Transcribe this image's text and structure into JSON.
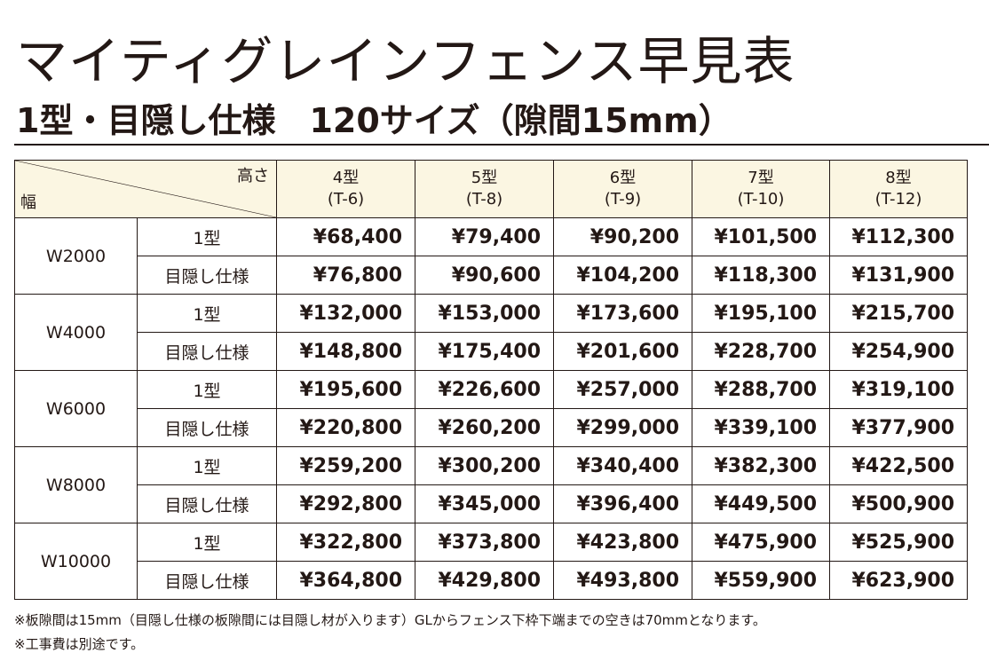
{
  "title": "マイティグレインフェンス早見表",
  "subtitle": "1型・目隠し仕様　120サイズ（隙間15mm）",
  "table": {
    "corner_height_label": "高さ",
    "corner_width_label": "幅",
    "columns": [
      {
        "type": "4型",
        "code": "(T-6)"
      },
      {
        "type": "5型",
        "code": "(T-8)"
      },
      {
        "type": "6型",
        "code": "(T-9)"
      },
      {
        "type": "7型",
        "code": "(T-10)"
      },
      {
        "type": "8型",
        "code": "(T-12)"
      }
    ],
    "groups": [
      {
        "width": "W2000",
        "rows": [
          {
            "label": "1型",
            "prices": [
              "¥68,400",
              "¥79,400",
              "¥90,200",
              "¥101,500",
              "¥112,300"
            ]
          },
          {
            "label": "目隠し仕様",
            "prices": [
              "¥76,800",
              "¥90,600",
              "¥104,200",
              "¥118,300",
              "¥131,900"
            ]
          }
        ]
      },
      {
        "width": "W4000",
        "rows": [
          {
            "label": "1型",
            "prices": [
              "¥132,000",
              "¥153,000",
              "¥173,600",
              "¥195,100",
              "¥215,700"
            ]
          },
          {
            "label": "目隠し仕様",
            "prices": [
              "¥148,800",
              "¥175,400",
              "¥201,600",
              "¥228,700",
              "¥254,900"
            ]
          }
        ]
      },
      {
        "width": "W6000",
        "rows": [
          {
            "label": "1型",
            "prices": [
              "¥195,600",
              "¥226,600",
              "¥257,000",
              "¥288,700",
              "¥319,100"
            ]
          },
          {
            "label": "目隠し仕様",
            "prices": [
              "¥220,800",
              "¥260,200",
              "¥299,000",
              "¥339,100",
              "¥377,900"
            ]
          }
        ]
      },
      {
        "width": "W8000",
        "rows": [
          {
            "label": "1型",
            "prices": [
              "¥259,200",
              "¥300,200",
              "¥340,400",
              "¥382,300",
              "¥422,500"
            ]
          },
          {
            "label": "目隠し仕様",
            "prices": [
              "¥292,800",
              "¥345,000",
              "¥396,400",
              "¥449,500",
              "¥500,900"
            ]
          }
        ]
      },
      {
        "width": "W10000",
        "rows": [
          {
            "label": "1型",
            "prices": [
              "¥322,800",
              "¥373,800",
              "¥423,800",
              "¥475,900",
              "¥525,900"
            ]
          },
          {
            "label": "目隠し仕様",
            "prices": [
              "¥364,800",
              "¥429,800",
              "¥493,800",
              "¥559,900",
              "¥623,900"
            ]
          }
        ]
      }
    ]
  },
  "notes": [
    "※板隙間は15mm（目隠し仕様の板隙間には目隠し材が入ります）GLからフェンス下枠下端までの空きは70mmとなります。",
    "※工事費は別途です。"
  ],
  "colors": {
    "header_bg": "#fbf6e2",
    "text": "#231815"
  }
}
